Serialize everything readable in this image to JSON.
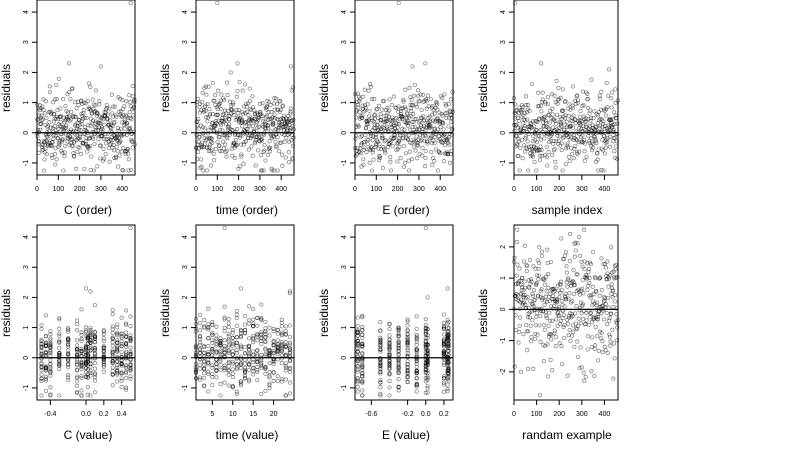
{
  "figure": {
    "panels": [
      {
        "id": "c-order",
        "xlabel": "C (order)"
      },
      {
        "id": "time-order",
        "xlabel": "time (order)"
      },
      {
        "id": "e-order",
        "xlabel": "E (order)"
      },
      {
        "id": "sample-index",
        "xlabel": "sample index"
      },
      {
        "id": "c-value",
        "xlabel": "C (value)"
      },
      {
        "id": "time-value",
        "xlabel": "time (value)"
      },
      {
        "id": "e-value",
        "xlabel": "E (value)"
      },
      {
        "id": "random-example",
        "xlabel": "randam example"
      }
    ]
  },
  "chart_data": [
    {
      "type": "scatter",
      "xlabel": "C (order)",
      "ylabel": "residuals",
      "xlim": [
        0,
        460
      ],
      "ylim": [
        -1.4,
        4.4
      ],
      "x_ticks": [
        0,
        100,
        200,
        300,
        400
      ],
      "y_ticks": [
        -1,
        0,
        1,
        2,
        3,
        4
      ],
      "reference_line_y": 0,
      "gen": {
        "kind": "index",
        "n": 460,
        "seed": 11,
        "sd": 0.6,
        "outliers": [
          [
            440,
            4.3
          ],
          [
            300,
            2.2
          ],
          [
            150,
            2.3
          ]
        ]
      }
    },
    {
      "type": "scatter",
      "xlabel": "time (order)",
      "ylabel": "residuals",
      "xlim": [
        0,
        460
      ],
      "ylim": [
        -1.4,
        4.4
      ],
      "x_ticks": [
        0,
        100,
        200,
        300,
        400
      ],
      "y_ticks": [
        -1,
        0,
        1,
        2,
        3,
        4
      ],
      "reference_line_y": 0,
      "gen": {
        "kind": "index",
        "n": 460,
        "seed": 23,
        "sd": 0.6,
        "outliers": [
          [
            100,
            4.3
          ],
          [
            195,
            2.3
          ],
          [
            445,
            2.2
          ]
        ]
      }
    },
    {
      "type": "scatter",
      "xlabel": "E (order)",
      "ylabel": "residuals",
      "xlim": [
        0,
        460
      ],
      "ylim": [
        -1.4,
        4.4
      ],
      "x_ticks": [
        0,
        100,
        200,
        300,
        400
      ],
      "y_ticks": [
        -1,
        0,
        1,
        2,
        3,
        4
      ],
      "reference_line_y": 0,
      "gen": {
        "kind": "index",
        "n": 460,
        "seed": 37,
        "sd": 0.6,
        "outliers": [
          [
            205,
            4.3
          ],
          [
            330,
            2.3
          ],
          [
            270,
            2.2
          ]
        ]
      }
    },
    {
      "type": "scatter",
      "xlabel": "sample index",
      "ylabel": "residuals",
      "xlim": [
        0,
        460
      ],
      "ylim": [
        -1.4,
        4.4
      ],
      "x_ticks": [
        0,
        100,
        200,
        300,
        400
      ],
      "y_ticks": [
        -1,
        0,
        1,
        2,
        3,
        4
      ],
      "reference_line_y": 0,
      "gen": {
        "kind": "index",
        "n": 460,
        "seed": 41,
        "sd": 0.6,
        "outliers": [
          [
            5,
            4.3
          ],
          [
            120,
            2.3
          ],
          [
            420,
            2.1
          ]
        ]
      }
    },
    {
      "type": "scatter",
      "xlabel": "C (value)",
      "ylabel": "residuals",
      "xlim": [
        -0.55,
        0.55
      ],
      "ylim": [
        -1.4,
        4.4
      ],
      "x_ticks": [
        -0.4,
        0.0,
        0.2,
        0.4
      ],
      "x_tick_labels": [
        "-0.4",
        "0.0",
        "0.2",
        "0.4"
      ],
      "y_ticks": [
        -1,
        0,
        1,
        2,
        3,
        4
      ],
      "reference_line_y": 0,
      "gen": {
        "kind": "levels",
        "levels": [
          -0.5,
          -0.45,
          -0.4,
          -0.3,
          -0.2,
          -0.1,
          -0.05,
          0.0,
          0.02,
          0.05,
          0.1,
          0.2,
          0.3,
          0.35,
          0.4,
          0.45,
          0.5
        ],
        "per_level": 27,
        "seed": 53,
        "sd": 0.6,
        "outliers": [
          [
            0.5,
            4.3
          ],
          [
            0.0,
            2.3
          ],
          [
            0.05,
            2.2
          ]
        ]
      }
    },
    {
      "type": "scatter",
      "xlabel": "time (value)",
      "ylabel": "residuals",
      "xlim": [
        1,
        25
      ],
      "ylim": [
        -1.4,
        4.4
      ],
      "x_ticks": [
        5,
        10,
        15,
        20
      ],
      "y_ticks": [
        -1,
        0,
        1,
        2,
        3,
        4
      ],
      "reference_line_y": 0,
      "gen": {
        "kind": "levels",
        "levels": [
          1,
          2,
          3,
          4,
          5,
          6,
          7,
          8,
          9,
          10,
          11,
          12,
          13,
          14,
          15,
          16,
          17,
          18,
          19,
          20,
          21,
          22,
          23,
          24
        ],
        "per_level": 19,
        "seed": 67,
        "sd": 0.6,
        "outliers": [
          [
            8,
            4.3
          ],
          [
            12,
            2.3
          ],
          [
            24,
            2.2
          ]
        ]
      }
    },
    {
      "type": "scatter",
      "xlabel": "E (value)",
      "ylabel": "residuals",
      "xlim": [
        -0.78,
        0.3
      ],
      "ylim": [
        -1.4,
        4.4
      ],
      "x_ticks": [
        -0.6,
        -0.2,
        0.0,
        0.2
      ],
      "x_tick_labels": [
        "-0.6",
        "-0.2",
        "0.0",
        "0.2"
      ],
      "y_ticks": [
        -1,
        0,
        1,
        2,
        3,
        4
      ],
      "reference_line_y": 0,
      "gen": {
        "kind": "levels",
        "levels": [
          -0.75,
          -0.7,
          -0.5,
          -0.4,
          -0.3,
          -0.2,
          -0.1,
          0.0,
          0.02,
          0.2,
          0.24,
          0.25
        ],
        "per_level": 38,
        "seed": 79,
        "sd": 0.6,
        "outliers": [
          [
            0.0,
            4.3
          ],
          [
            0.24,
            2.3
          ],
          [
            0.02,
            2.0
          ]
        ]
      }
    },
    {
      "type": "scatter",
      "xlabel": "randam example",
      "ylabel": "residuals",
      "xlim": [
        0,
        460
      ],
      "ylim": [
        -2.9,
        2.7
      ],
      "x_ticks": [
        0,
        100,
        200,
        300,
        400
      ],
      "y_ticks": [
        -2,
        -1,
        0,
        1,
        2
      ],
      "reference_line_y": 0,
      "gen": {
        "kind": "index",
        "n": 460,
        "seed": 97,
        "sd": 1.0,
        "outliers": []
      }
    }
  ]
}
